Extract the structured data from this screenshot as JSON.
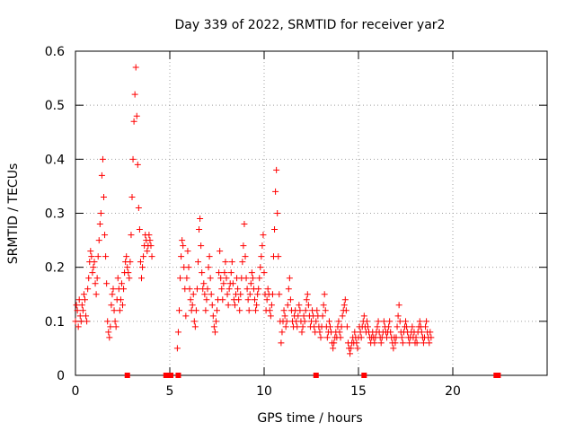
{
  "chart_data": {
    "type": "scatter",
    "title": "Day 339 of 2022, SRMTID for receiver yar2",
    "xlabel": "GPS time / hours",
    "ylabel": "SRMTID / TECUs",
    "xlim": [
      0,
      25
    ],
    "ylim": [
      0,
      0.6
    ],
    "grid": true,
    "marker": "+",
    "color": "#ff0000",
    "x_ticks": [
      0,
      5,
      10,
      15,
      20
    ],
    "x_tick_labels": [
      "0",
      "5",
      "10",
      "15",
      "20"
    ],
    "y_ticks": [
      0,
      0.1,
      0.2,
      0.3,
      0.4,
      0.5,
      0.6
    ],
    "y_tick_labels": [
      "0",
      "0.1",
      "0.2",
      "0.3",
      "0.4",
      "0.5",
      "0.6"
    ],
    "x_step_hours": 0.05,
    "series": [
      {
        "name": "SRMTID",
        "segments": [
          {
            "x_start": 0.0,
            "values": [
              0.1,
              0.13,
              0.12,
              0.09,
              0.14,
              0.11,
              0.1,
              0.13,
              0.12,
              0.15,
              0.14,
              0.11,
              0.1,
              0.16,
              0.18,
              0.21,
              0.23,
              0.22,
              0.19,
              0.2,
              0.21,
              0.17,
              0.15,
              0.18,
              0.22,
              0.25,
              0.28,
              0.3,
              0.37,
              0.4,
              0.33,
              0.26,
              0.22,
              0.17,
              0.1,
              0.08,
              0.07,
              0.09,
              0.13,
              0.15,
              0.16,
              0.12,
              0.1,
              0.09,
              0.14,
              0.18,
              0.16,
              0.12,
              0.14,
              0.17,
              0.13,
              0.16,
              0.19,
              0.21,
              0.22,
              0.2,
              0.19,
              0.18,
              0.21,
              0.26,
              0.33,
              0.4,
              0.47,
              0.52,
              0.57,
              0.48,
              0.39,
              0.31,
              0.27,
              0.21,
              0.18,
              0.2,
              0.22,
              0.24,
              0.26,
              0.25,
              0.23,
              0.24,
              0.26,
              0.25,
              0.24,
              0.22
            ]
          },
          {
            "x_start": 5.4,
            "values": [
              0.05,
              0.08,
              0.12,
              0.18,
              0.22,
              0.25,
              0.24,
              0.2,
              0.16,
              0.11,
              0.18,
              0.23,
              0.2,
              0.16,
              0.14,
              0.12,
              0.13,
              0.15,
              0.1,
              0.09,
              0.12,
              0.16,
              0.21,
              0.27,
              0.29,
              0.24,
              0.19,
              0.16,
              0.17,
              0.15,
              0.12,
              0.14,
              0.16,
              0.2,
              0.22,
              0.18,
              0.15,
              0.13,
              0.11,
              0.09,
              0.08,
              0.1,
              0.12,
              0.14,
              0.19,
              0.23,
              0.18,
              0.16,
              0.14,
              0.17,
              0.19,
              0.21,
              0.18,
              0.15,
              0.13,
              0.16,
              0.17,
              0.19,
              0.21,
              0.17,
              0.14,
              0.13,
              0.15,
              0.18,
              0.16,
              0.14,
              0.12,
              0.15,
              0.18,
              0.21,
              0.24,
              0.28,
              0.22,
              0.18,
              0.16,
              0.14,
              0.12,
              0.15,
              0.17,
              0.19,
              0.18,
              0.16,
              0.14,
              0.12,
              0.13,
              0.15,
              0.16,
              0.18,
              0.2,
              0.22,
              0.24,
              0.26,
              0.19,
              0.15,
              0.12,
              0.14,
              0.16,
              0.15,
              0.12,
              0.11,
              0.13,
              0.15,
              0.22,
              0.27,
              0.34,
              0.38,
              0.3,
              0.22,
              0.15,
              0.1,
              0.06,
              0.08,
              0.1,
              0.12,
              0.11,
              0.09,
              0.1,
              0.13,
              0.16,
              0.18,
              0.14,
              0.12,
              0.1,
              0.09,
              0.11,
              0.12,
              0.1,
              0.09,
              0.11,
              0.13,
              0.12,
              0.1,
              0.08,
              0.09,
              0.11,
              0.1,
              0.12,
              0.14,
              0.15,
              0.13,
              0.11,
              0.09,
              0.1,
              0.12,
              0.11,
              0.09,
              0.08,
              0.1,
              0.12,
              0.11,
              0.09,
              0.08,
              0.07,
              0.09,
              0.11,
              0.13,
              0.15,
              0.12,
              0.09,
              0.07,
              0.08,
              0.1,
              0.09,
              0.08,
              0.06,
              0.05,
              0.06,
              0.07,
              0.08,
              0.07,
              0.09,
              0.1,
              0.08,
              0.07,
              0.09,
              0.11,
              0.12,
              0.13,
              0.14,
              0.12,
              0.09,
              0.06,
              0.05,
              0.04,
              0.05,
              0.06,
              0.07,
              0.06,
              0.08,
              0.07,
              0.06,
              0.05,
              0.07,
              0.09,
              0.08,
              0.07,
              0.09,
              0.1,
              0.11,
              0.09,
              0.08,
              0.1,
              0.09,
              0.08,
              0.07,
              0.06,
              0.07,
              0.08,
              0.07,
              0.06,
              0.07,
              0.08,
              0.09,
              0.1,
              0.08,
              0.07,
              0.06,
              0.07,
              0.08,
              0.1,
              0.09,
              0.08,
              0.07,
              0.08,
              0.09,
              0.1,
              0.08,
              0.07,
              0.06,
              0.05,
              0.07,
              0.06,
              0.07,
              0.09,
              0.11,
              0.13,
              0.1,
              0.08,
              0.07,
              0.06,
              0.08,
              0.09,
              0.1,
              0.09,
              0.08,
              0.07,
              0.06,
              0.07,
              0.08,
              0.09,
              0.07,
              0.08,
              0.06,
              0.07,
              0.06,
              0.08,
              0.09,
              0.1,
              0.09,
              0.08,
              0.07,
              0.06,
              0.07,
              0.09,
              0.1,
              0.08,
              0.07,
              0.06,
              0.08,
              0.07
            ]
          }
        ]
      }
    ],
    "gap_markers_x": [
      2.75,
      4.8,
      4.9,
      5.05,
      5.45,
      12.75,
      15.3,
      22.3,
      22.4
    ]
  }
}
